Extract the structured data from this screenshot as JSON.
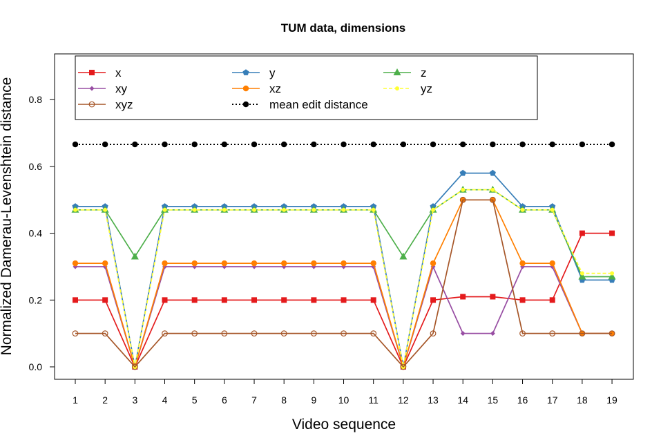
{
  "chart_data": {
    "type": "line",
    "title": "TUM data, dimensions",
    "xlabel": "Video sequence",
    "ylabel": "Normalized Damerau-Levenshtein distance",
    "x": [
      1,
      2,
      3,
      4,
      5,
      6,
      7,
      8,
      9,
      10,
      11,
      12,
      13,
      14,
      15,
      16,
      17,
      18,
      19
    ],
    "x_tick_labels": [
      "1",
      "2",
      "3",
      "4",
      "5",
      "6",
      "7",
      "8",
      "9",
      "10",
      "11",
      "12",
      "13",
      "14",
      "15",
      "16",
      "17",
      "18",
      "19"
    ],
    "y_ticks": [
      0.0,
      0.2,
      0.4,
      0.6,
      0.8
    ],
    "y_tick_labels": [
      "0.0",
      "0.2",
      "0.4",
      "0.6",
      "0.8"
    ],
    "ylim": [
      -0.038,
      0.948
    ],
    "xlim": [
      0.5,
      19.7
    ],
    "grid": false,
    "legend_placement": "top-left",
    "series": [
      {
        "name": "x",
        "color": "#e41a1c",
        "marker": "square",
        "dash": "solid",
        "values": [
          0.2,
          0.2,
          0,
          0.2,
          0.2,
          0.2,
          0.2,
          0.2,
          0.2,
          0.2,
          0.2,
          0,
          0.2,
          0.21,
          0.21,
          0.2,
          0.2,
          0.4,
          0.4
        ]
      },
      {
        "name": "y",
        "color": "#377eb8",
        "marker": "pentagon",
        "dash": "solid",
        "values": [
          0.48,
          0.48,
          0,
          0.48,
          0.48,
          0.48,
          0.48,
          0.48,
          0.48,
          0.48,
          0.48,
          0,
          0.48,
          0.58,
          0.58,
          0.48,
          0.48,
          0.26,
          0.26
        ]
      },
      {
        "name": "z",
        "color": "#4daf4a",
        "marker": "triangle",
        "dash": "solid",
        "values": [
          0.47,
          0.47,
          0.33,
          0.47,
          0.47,
          0.47,
          0.47,
          0.47,
          0.47,
          0.47,
          0.47,
          0.33,
          0.47,
          0.53,
          0.53,
          0.47,
          0.47,
          0.27,
          0.27
        ]
      },
      {
        "name": "xy",
        "color": "#984ea3",
        "marker": "diamond",
        "dash": "solid",
        "values": [
          0.3,
          0.3,
          0,
          0.3,
          0.3,
          0.3,
          0.3,
          0.3,
          0.3,
          0.3,
          0.3,
          0,
          0.3,
          0.1,
          0.1,
          0.3,
          0.3,
          0.1,
          0.1
        ]
      },
      {
        "name": "xz",
        "color": "#ff7f00",
        "marker": "circle",
        "dash": "solid",
        "values": [
          0.31,
          0.31,
          0,
          0.31,
          0.31,
          0.31,
          0.31,
          0.31,
          0.31,
          0.31,
          0.31,
          0,
          0.31,
          0.5,
          0.5,
          0.31,
          0.31,
          0.1,
          0.1
        ]
      },
      {
        "name": "yz",
        "color": "#ffff33",
        "marker": "small-circle",
        "dash": "dashed",
        "values": [
          0.47,
          0.47,
          0,
          0.47,
          0.47,
          0.47,
          0.47,
          0.47,
          0.47,
          0.47,
          0.47,
          0,
          0.47,
          0.53,
          0.53,
          0.47,
          0.47,
          0.28,
          0.28
        ]
      },
      {
        "name": "xyz",
        "color": "#a65628",
        "marker": "open-circle",
        "dash": "solid",
        "values": [
          0.1,
          0.1,
          0,
          0.1,
          0.1,
          0.1,
          0.1,
          0.1,
          0.1,
          0.1,
          0.1,
          0,
          0.1,
          0.5,
          0.5,
          0.1,
          0.1,
          0.1,
          0.1
        ]
      },
      {
        "name": "mean edit distance",
        "color": "#000000",
        "marker": "circle",
        "dash": "dotted",
        "values": [
          0.666,
          0.666,
          0.666,
          0.666,
          0.666,
          0.666,
          0.666,
          0.666,
          0.666,
          0.666,
          0.666,
          0.666,
          0.666,
          0.666,
          0.666,
          0.666,
          0.666,
          0.666,
          0.666
        ]
      }
    ],
    "legend_order": [
      "x",
      "y",
      "z",
      "xy",
      "xz",
      "yz",
      "xyz",
      "mean edit distance"
    ]
  }
}
